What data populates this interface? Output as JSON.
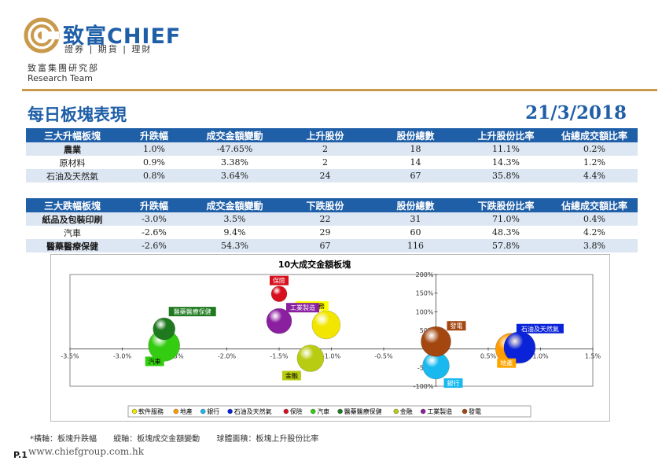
{
  "header": {
    "brand_cn": "致富",
    "brand_en": "CHIEF",
    "tagline": "證券 | 期貨 | 理財",
    "dept_cn": "致富集團研究部",
    "dept_en": "Research Team"
  },
  "report": {
    "title": "每日板塊表現",
    "date": "21/3/2018"
  },
  "gainers": {
    "headers": [
      "三大升幅板塊",
      "升跌幅",
      "成交金額變動",
      "上升股份",
      "股份總數",
      "上升股份比率",
      "佔總成交額比率"
    ],
    "rows": [
      [
        "農業",
        "1.0%",
        "-47.65%",
        "2",
        "18",
        "11.1%",
        "0.2%"
      ],
      [
        "原材料",
        "0.9%",
        "3.38%",
        "2",
        "14",
        "14.3%",
        "1.2%"
      ],
      [
        "石油及天然氣",
        "0.8%",
        "3.64%",
        "24",
        "67",
        "35.8%",
        "4.4%"
      ]
    ]
  },
  "losers": {
    "headers": [
      "三大跌幅板塊",
      "升跌幅",
      "成交金額變動",
      "下跌股份",
      "股份總數",
      "下跌股份比率",
      "佔總成交額比率"
    ],
    "rows": [
      [
        "紙品及包裝印刷",
        "-3.0%",
        "3.5%",
        "22",
        "31",
        "71.0%",
        "0.4%"
      ],
      [
        "汽車",
        "-2.6%",
        "9.4%",
        "29",
        "60",
        "48.3%",
        "4.2%"
      ],
      [
        "醫藥醫療保健",
        "-2.6%",
        "54.3%",
        "67",
        "116",
        "57.8%",
        "3.8%"
      ]
    ]
  },
  "chart_data": {
    "type": "scatter",
    "title": "10大成交金額板塊",
    "xlim": [
      -3.5,
      1.5
    ],
    "ylim": [
      -100,
      200
    ],
    "x_ticks": [
      "-3.5%",
      "-3.0%",
      "-2.5%",
      "-2.0%",
      "-1.5%",
      "-1.0%",
      "-0.5%",
      "0.0%",
      "0.5%",
      "1.0%",
      "1.5%"
    ],
    "y_ticks": [
      "-100%",
      "-50%",
      "0%",
      "50%",
      "100%",
      "150%",
      "200%"
    ],
    "legend_position": "bottom",
    "series": [
      {
        "name": "軟件服務",
        "x": -1.05,
        "y": 65,
        "color": "#f2e600",
        "label_color": "#ffff00",
        "label_text": "#000000"
      },
      {
        "name": "地產",
        "x": 0.72,
        "y": 0,
        "color": "#ff9a00",
        "label_color": "#ffa500",
        "label_text": "#ffffff"
      },
      {
        "name": "銀行",
        "x": 0.0,
        "y": -45,
        "color": "#19b9f0",
        "label_color": "#19b9f0",
        "label_text": "#ffffff"
      },
      {
        "name": "石油及天然氣",
        "x": 0.8,
        "y": 4,
        "color": "#0a22d8",
        "label_color": "#0a22d8",
        "label_text": "#ffffff"
      },
      {
        "name": "保險",
        "x": -1.5,
        "y": 148,
        "color": "#d8101e",
        "label_color": "#d8101e",
        "label_text": "#ffffff"
      },
      {
        "name": "汽車",
        "x": -2.6,
        "y": 9,
        "color": "#33cc11",
        "label_color": "#33cc11",
        "label_text": "#000000"
      },
      {
        "name": "醫藥醫療保健",
        "x": -2.6,
        "y": 54,
        "color": "#1f7a1f",
        "label_color": "#1f7a1f",
        "label_text": "#ffffff"
      },
      {
        "name": "金融",
        "x": -1.2,
        "y": -25,
        "color": "#b8cc11",
        "label_color": "#b8cc11",
        "label_text": "#000000"
      },
      {
        "name": "工業製造",
        "x": -1.5,
        "y": 75,
        "color": "#8a1fa0",
        "label_color": "#8a1fa0",
        "label_text": "#ffffff"
      },
      {
        "name": "發電",
        "x": 0.0,
        "y": 20,
        "color": "#a34610",
        "label_color": "#a34610",
        "label_text": "#ffffff"
      }
    ]
  },
  "footnote": {
    "horizontal": "*橫軸：板塊升跌幅",
    "vertical": "縱軸：板塊成交金額變動",
    "area": "球體面積：板塊上升股份比率"
  },
  "footer": {
    "page": "P.1",
    "website": "www.chiefgroup.com.hk"
  }
}
